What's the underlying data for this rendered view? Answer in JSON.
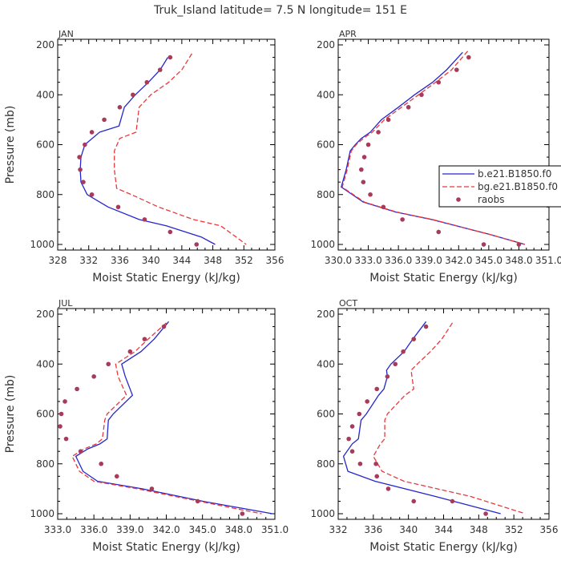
{
  "title": "Truk_Island  latitude= 7.5 N longitude= 151 E",
  "colors": {
    "model1": "#2626cc",
    "model2": "#e8393d",
    "obs": "#a83a5a",
    "axis": "#000000",
    "text": "#333333"
  },
  "legend": {
    "entries": [
      {
        "label": "b.e21.B1850.f0",
        "style": "solid",
        "color": "#2626cc"
      },
      {
        "label": "bg.e21.B1850.f0",
        "style": "dashed",
        "color": "#e8393d"
      },
      {
        "label": "raobs",
        "style": "dot",
        "color": "#a83a5a"
      }
    ]
  },
  "chart_data": [
    {
      "type": "line",
      "panel": "JAN",
      "xlabel": "Moist Static Energy (kJ/kg)",
      "ylabel": "Pressure (mb)",
      "xlim": [
        328,
        356
      ],
      "ylim": [
        1000,
        200
      ],
      "xticks": [
        328,
        332,
        336,
        340,
        344,
        348,
        352,
        356
      ],
      "xticklabels": [
        "328",
        "332",
        "336",
        "340",
        "344",
        "348",
        "352",
        "356"
      ],
      "yticks": [
        200,
        400,
        600,
        800,
        1000
      ],
      "yticklabels": [
        "200",
        "400",
        "600",
        "800",
        "1000"
      ],
      "series": [
        {
          "name": "b.e21.B1850.f0",
          "style": "solid",
          "x": [
            342.2,
            341.2,
            339.7,
            338.0,
            336.6,
            335.9,
            333.4,
            331.5,
            331.0,
            330.9,
            331.0,
            331.8,
            334.5,
            338.5,
            342.0,
            346.5,
            348.3
          ],
          "p": [
            250,
            300,
            350,
            400,
            450,
            525,
            550,
            600,
            650,
            700,
            750,
            800,
            850,
            900,
            925,
            970,
            1000
          ]
        },
        {
          "name": "bg.e21.B1850.f0",
          "style": "dashed",
          "x": [
            345.3,
            344.0,
            342.3,
            340.0,
            338.5,
            338.1,
            336.0,
            335.3,
            335.3,
            335.5,
            335.6,
            337.5,
            341.0,
            345.5,
            349.0,
            351.0,
            352.3
          ],
          "p": [
            235,
            300,
            350,
            400,
            450,
            550,
            575,
            625,
            700,
            750,
            775,
            800,
            850,
            900,
            925,
            970,
            1000
          ]
        },
        {
          "name": "raobs",
          "style": "dot",
          "x": [
            342.5,
            341.2,
            339.5,
            337.7,
            336.0,
            334.0,
            332.4,
            331.5,
            330.8,
            330.9,
            331.3,
            332.4,
            335.8,
            339.2,
            342.5,
            345.9
          ],
          "p": [
            250,
            300,
            350,
            400,
            450,
            500,
            550,
            600,
            650,
            700,
            750,
            800,
            850,
            900,
            950,
            1000
          ]
        }
      ]
    },
    {
      "type": "line",
      "panel": "APR",
      "xlabel": "Moist Static Energy (kJ/kg)",
      "ylabel": "",
      "xlim": [
        330.0,
        351.0
      ],
      "ylim": [
        1000,
        200
      ],
      "xticks": [
        330.0,
        333.0,
        336.0,
        339.0,
        342.0,
        345.0,
        348.0,
        351.0
      ],
      "xticklabels": [
        "330.0",
        "333.0",
        "336.0",
        "339.0",
        "342.0",
        "345.0",
        "348.0",
        "351.0"
      ],
      "yticks": [
        200,
        400,
        600,
        800,
        1000
      ],
      "yticklabels": [
        "200",
        "400",
        "600",
        "800",
        "1000"
      ],
      "series": [
        {
          "name": "b.e21.B1850.f0",
          "style": "solid",
          "x": [
            342.4,
            340.8,
            339.4,
            337.6,
            336.0,
            334.3,
            333.2,
            332.3,
            331.7,
            331.2,
            330.8,
            330.3,
            332.5,
            335.7,
            339.3,
            345.1,
            348.6
          ],
          "p": [
            230,
            300,
            350,
            400,
            450,
            500,
            550,
            575,
            600,
            625,
            700,
            770,
            830,
            870,
            900,
            960,
            1000
          ]
        },
        {
          "name": "bg.e21.B1850.f0",
          "style": "dashed",
          "x": [
            342.9,
            341.3,
            339.7,
            338.0,
            336.3,
            334.6,
            333.4,
            332.5,
            331.8,
            331.3,
            330.9,
            330.4,
            332.6,
            335.8,
            339.4,
            345.1,
            348.6
          ],
          "p": [
            225,
            300,
            350,
            400,
            450,
            500,
            550,
            575,
            600,
            625,
            700,
            770,
            830,
            870,
            900,
            960,
            1000
          ]
        },
        {
          "name": "raobs",
          "style": "dot",
          "x": [
            343.0,
            341.8,
            340.0,
            338.3,
            337.0,
            335.0,
            334.0,
            333.0,
            332.6,
            332.3,
            332.5,
            333.2,
            334.5,
            336.4,
            340.0,
            344.5,
            348.0
          ],
          "p": [
            250,
            300,
            350,
            400,
            450,
            500,
            550,
            600,
            650,
            700,
            750,
            800,
            850,
            900,
            950,
            1000,
            1000
          ]
        }
      ]
    },
    {
      "type": "line",
      "panel": "JUL",
      "xlabel": "Moist Static Energy (kJ/kg)",
      "ylabel": "Pressure (mb)",
      "xlim": [
        333.0,
        351.0
      ],
      "ylim": [
        1000,
        200
      ],
      "xticks": [
        333.0,
        336.0,
        339.0,
        342.0,
        345.0,
        348.0,
        351.0
      ],
      "xticklabels": [
        "333.0",
        "336.0",
        "339.0",
        "342.0",
        "345.0",
        "348.0",
        "351.0"
      ],
      "yticks": [
        200,
        400,
        600,
        800,
        1000
      ],
      "yticklabels": [
        "200",
        "400",
        "600",
        "800",
        "1000"
      ],
      "series": [
        {
          "name": "b.e21.B1850.f0",
          "style": "solid",
          "x": [
            342.2,
            341.0,
            339.9,
            338.3,
            338.6,
            339.2,
            337.6,
            337.2,
            337.1,
            336.5,
            335.5,
            334.5,
            335.1,
            336.3,
            340.0,
            345.0,
            350.8
          ],
          "p": [
            230,
            300,
            350,
            400,
            450,
            525,
            600,
            625,
            700,
            720,
            740,
            770,
            830,
            870,
            900,
            950,
            1000
          ]
        },
        {
          "name": "bg.e21.B1850.f0",
          "style": "dashed",
          "x": [
            342.0,
            340.5,
            339.4,
            337.8,
            338.0,
            338.7,
            337.1,
            336.9,
            336.7,
            336.2,
            335.2,
            334.2,
            334.8,
            336.0,
            339.6,
            344.7,
            349.9
          ],
          "p": [
            235,
            300,
            350,
            400,
            450,
            525,
            600,
            625,
            700,
            720,
            740,
            770,
            830,
            870,
            900,
            950,
            1000
          ]
        },
        {
          "name": "raobs",
          "style": "dot",
          "x": [
            341.8,
            340.2,
            339.0,
            337.2,
            336.0,
            334.6,
            333.6,
            333.3,
            333.2,
            333.7,
            334.9,
            336.6,
            337.9,
            340.8,
            344.6,
            348.3
          ],
          "p": [
            250,
            300,
            350,
            400,
            450,
            500,
            550,
            600,
            650,
            700,
            750,
            800,
            850,
            900,
            950,
            1000
          ]
        }
      ]
    },
    {
      "type": "line",
      "panel": "OCT",
      "xlabel": "Moist Static Energy (kJ/kg)",
      "ylabel": "",
      "xlim": [
        332,
        356
      ],
      "ylim": [
        1000,
        200
      ],
      "xticks": [
        332,
        336,
        340,
        344,
        348,
        352,
        356
      ],
      "xticklabels": [
        "332",
        "336",
        "340",
        "344",
        "348",
        "352",
        "356"
      ],
      "yticks": [
        200,
        400,
        600,
        800,
        1000
      ],
      "yticklabels": [
        "200",
        "400",
        "600",
        "800",
        "1000"
      ],
      "series": [
        {
          "name": "b.e21.B1850.f0",
          "style": "solid",
          "x": [
            342.0,
            340.5,
            339.5,
            338.0,
            337.5,
            337.6,
            337.2,
            336.6,
            335.2,
            334.6,
            334.3,
            333.6,
            332.6,
            333.1,
            336.2,
            343.0,
            350.5
          ],
          "p": [
            230,
            300,
            350,
            400,
            425,
            450,
            500,
            525,
            600,
            625,
            700,
            720,
            770,
            830,
            870,
            930,
            1000
          ]
        },
        {
          "name": "bg.e21.B1850.f0",
          "style": "dashed",
          "x": [
            345.0,
            343.8,
            342.5,
            341.0,
            340.3,
            340.4,
            340.6,
            339.6,
            337.6,
            337.3,
            337.3,
            336.8,
            336.0,
            337.0,
            339.5,
            347.0,
            353.3
          ],
          "p": [
            235,
            300,
            350,
            400,
            425,
            450,
            500,
            525,
            600,
            625,
            700,
            720,
            770,
            830,
            870,
            930,
            1000
          ]
        },
        {
          "name": "raobs",
          "style": "dot",
          "x": [
            342.0,
            340.6,
            339.4,
            338.5,
            337.6,
            336.4,
            335.3,
            334.4,
            333.6,
            333.2,
            333.6,
            334.5,
            336.3,
            336.4,
            337.7,
            340.6,
            345.0,
            348.8
          ],
          "p": [
            250,
            300,
            350,
            400,
            450,
            500,
            550,
            600,
            650,
            700,
            750,
            800,
            800,
            850,
            900,
            950,
            950,
            1000
          ]
        }
      ]
    }
  ]
}
